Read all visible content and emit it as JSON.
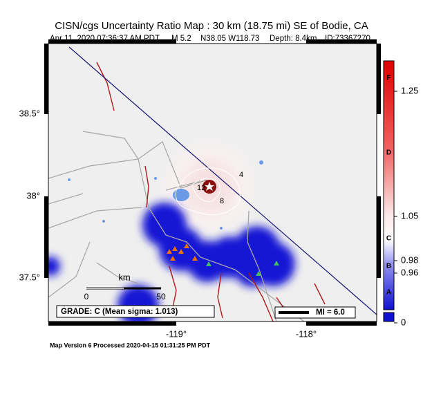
{
  "header": {
    "title": "CISN/cgs Uncertainty Ratio Map : 30 km (18.75 mi) SE of Bodie, CA",
    "subtitle": [
      "Apr 11, 2020 07:36:37 AM PDT",
      "M 5.2",
      "N38.05 W118.73",
      "Depth: 8.4km",
      "ID:73367270"
    ]
  },
  "map": {
    "lat_labels": [
      "38.5°",
      "38°",
      "37.5°"
    ],
    "lon_labels": [
      "-119°",
      "-118°"
    ],
    "contour_labels": [
      "4",
      "12",
      "8"
    ],
    "scale": {
      "unit": "km",
      "labels": [
        "0",
        "50"
      ]
    },
    "grade": "GRADE: C (Mean sigma: 1.013)",
    "mi": "MI = 6.0"
  },
  "colorbar": {
    "ticks": [
      "1.25",
      "1.05",
      "0.98",
      "0.96",
      "0"
    ],
    "grades": [
      "F",
      "D",
      "C",
      "B",
      "A"
    ]
  },
  "footer": "Map Version 6 Processed 2020-04-15 01:31:25 PM PDT"
}
